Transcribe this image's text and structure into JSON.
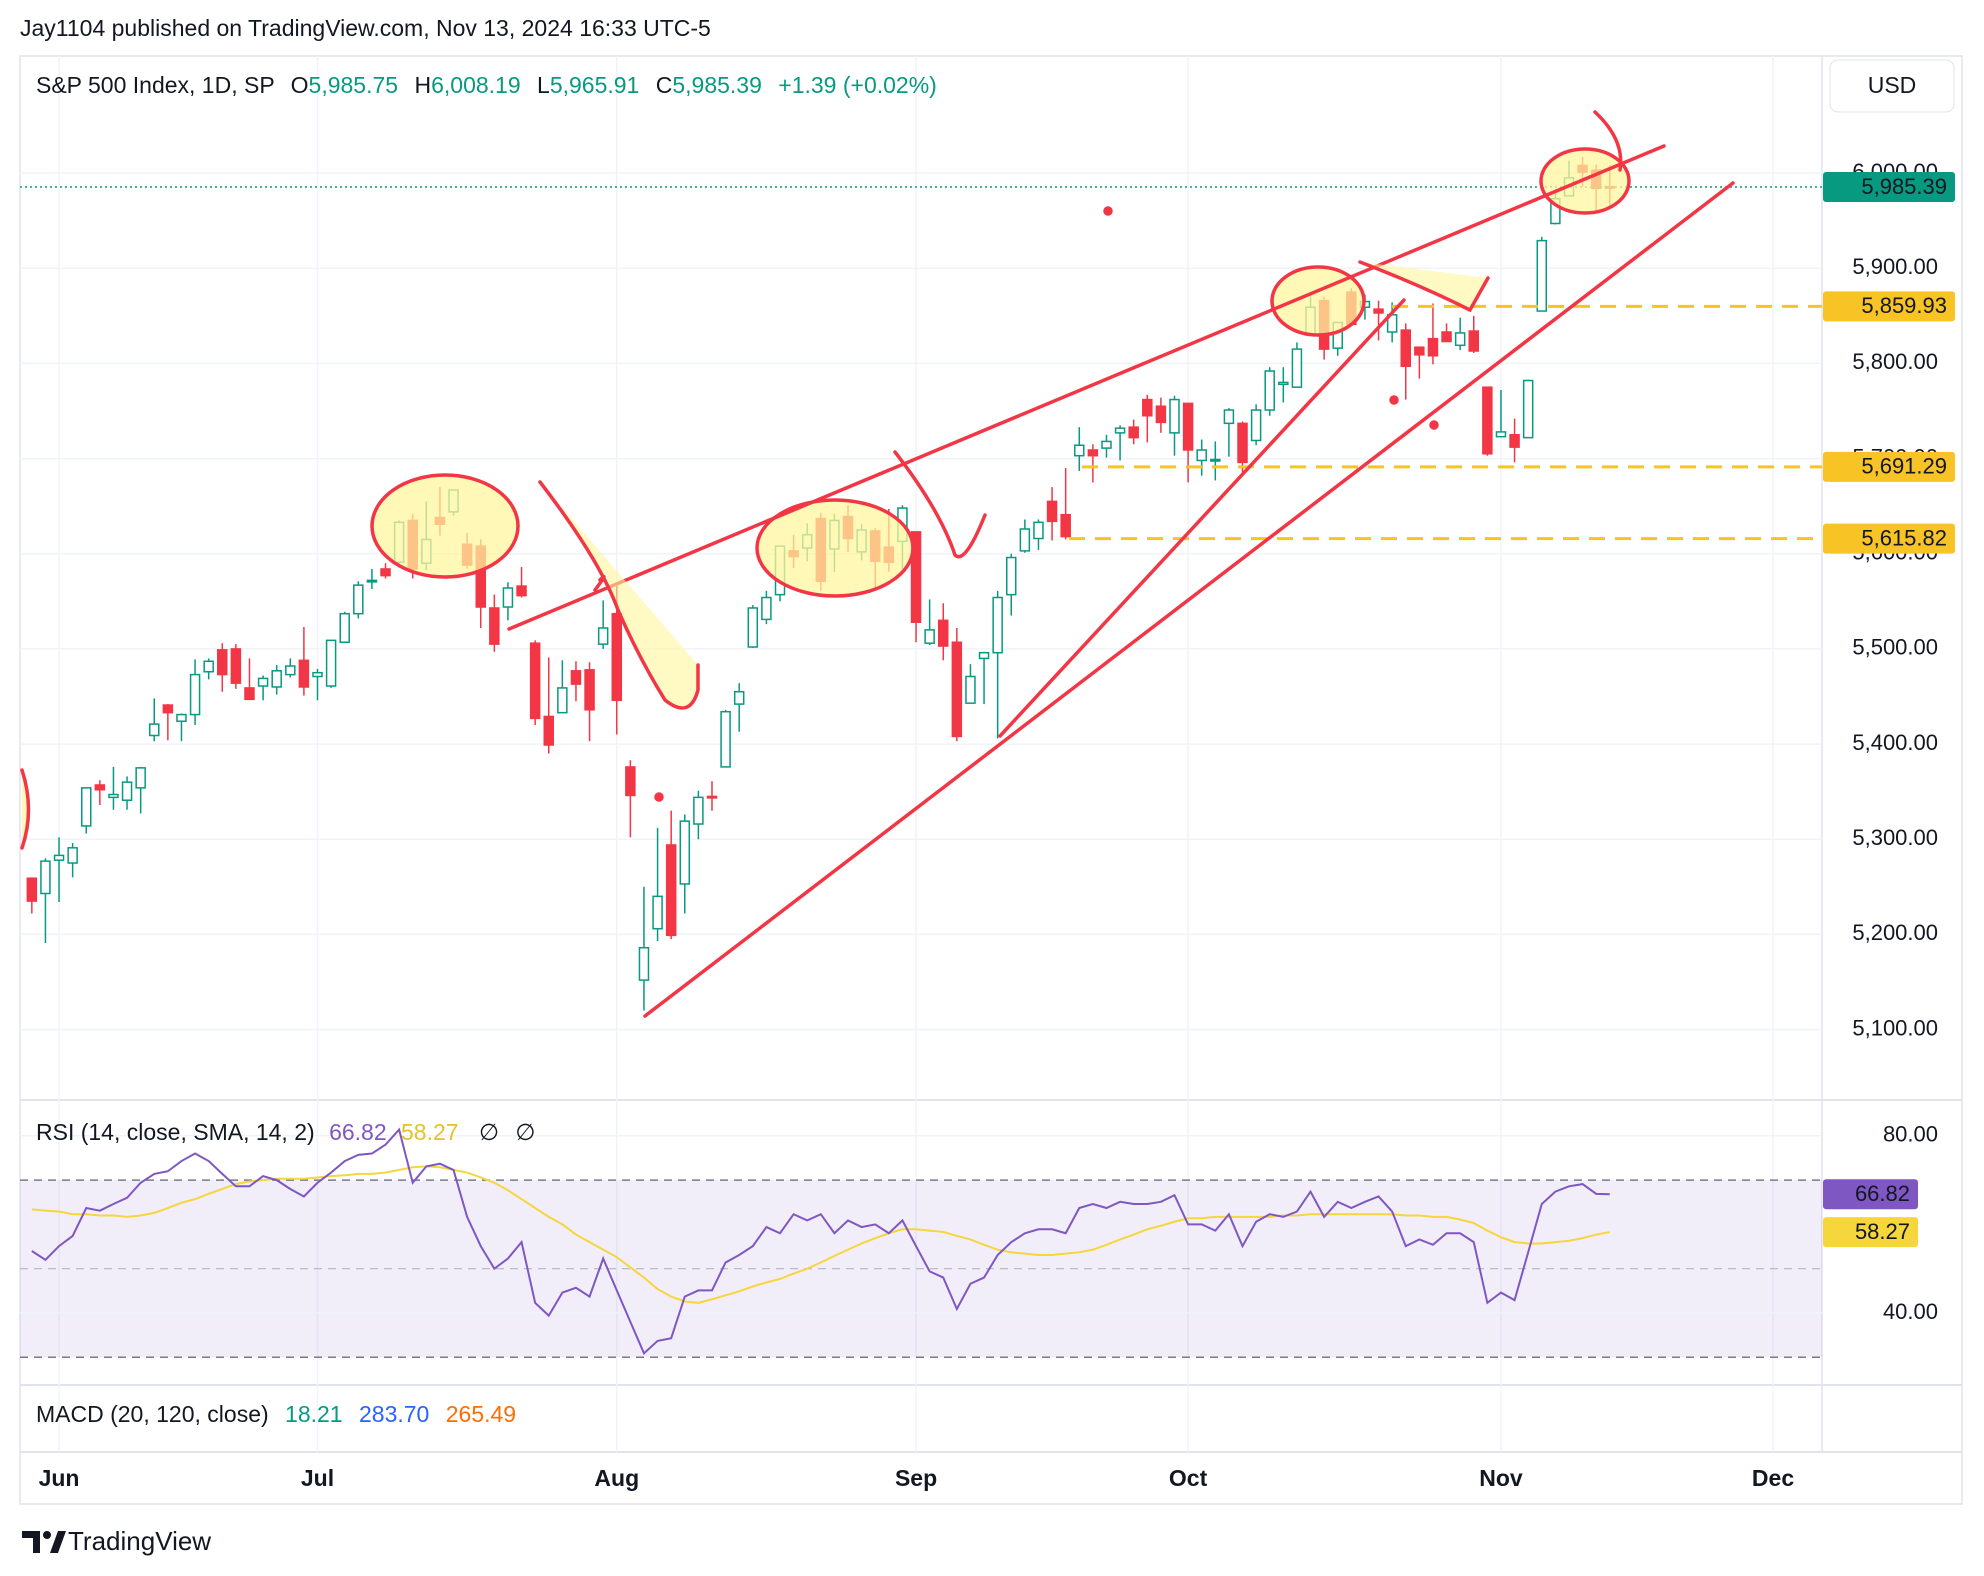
{
  "header": {
    "publisher": "Jay1104 published on TradingView.com, Nov 13, 2024 16:33 UTC-5",
    "symbol": "S&P 500 Index, 1D, SP",
    "ohlc": [
      {
        "label": "O",
        "value": "5,985.75"
      },
      {
        "label": "H",
        "value": "6,008.19"
      },
      {
        "label": "L",
        "value": "5,965.91"
      },
      {
        "label": "C",
        "value": "5,985.39"
      }
    ],
    "change": "+1.39 (+0.02%)",
    "currency": "USD"
  },
  "chart_data": [
    {
      "type": "candlestick",
      "up_color": "#089981",
      "down_color": "#f23645",
      "grid": true,
      "xlim": [
        -0.87,
        131.6
      ],
      "xticks": [
        {
          "value": 2,
          "label": "Jun"
        },
        {
          "value": 21,
          "label": "Jul"
        },
        {
          "value": 43,
          "label": "Aug"
        },
        {
          "value": 65,
          "label": "Sep"
        },
        {
          "value": 85,
          "label": "Oct"
        },
        {
          "value": 108,
          "label": "Nov"
        },
        {
          "value": 128,
          "label": "Dec"
        }
      ],
      "ylim": [
        5026,
        6123
      ],
      "yticks": [
        {
          "value": 5100,
          "label": "5,100.00"
        },
        {
          "value": 5200,
          "label": "5,200.00"
        },
        {
          "value": 5300,
          "label": "5,300.00"
        },
        {
          "value": 5400,
          "label": "5,400.00"
        },
        {
          "value": 5500,
          "label": "5,500.00"
        },
        {
          "value": 5600,
          "label": "5,600.00"
        },
        {
          "value": 5700,
          "label": "5,700.00"
        },
        {
          "value": 5800,
          "label": "5,800.00"
        },
        {
          "value": 5900,
          "label": "5,900.00"
        },
        {
          "value": 6000,
          "label": "6,000.00"
        }
      ],
      "open": [
        5259,
        5243,
        5278,
        5275,
        5314,
        5357,
        5344,
        5341,
        5354,
        5409,
        5441,
        5424,
        5431,
        5476,
        5499,
        5500,
        5459,
        5461,
        5460,
        5473,
        5488,
        5471,
        5461,
        5507,
        5537,
        5572,
        5584,
        5591,
        5635,
        5590,
        5638,
        5644,
        5610,
        5608,
        5543,
        5544,
        5566,
        5506,
        5429,
        5433,
        5477,
        5478,
        5505,
        5537,
        5376,
        5152,
        5206,
        5294,
        5253,
        5316,
        5345,
        5376,
        5442,
        5502,
        5531,
        5557,
        5603,
        5606,
        5637,
        5605,
        5639,
        5602,
        5624,
        5607,
        5613,
        5623,
        5506,
        5530,
        5507,
        5443,
        5490,
        5496,
        5557,
        5603,
        5616,
        5655,
        5641,
        5703,
        5709,
        5711,
        5727,
        5733,
        5762,
        5755,
        5727,
        5758,
        5698,
        5698,
        5737,
        5737,
        5719,
        5751,
        5778,
        5775,
        5830,
        5866,
        5816,
        5875,
        5859,
        5857,
        5833,
        5835,
        5817,
        5826,
        5833,
        5819,
        5834,
        5775,
        5723,
        5725,
        5722,
        5855,
        5947,
        5976,
        6008,
        6003,
        5985.75
      ],
      "high": [
        5260,
        5280,
        5302,
        5296,
        5354,
        5362,
        5376,
        5366,
        5376,
        5448,
        5442,
        5432,
        5489,
        5490,
        5506,
        5505,
        5490,
        5472,
        5483,
        5490,
        5523,
        5479,
        5509,
        5539,
        5571,
        5584,
        5590,
        5635,
        5642,
        5655,
        5670,
        5667,
        5622,
        5615,
        5557,
        5570,
        5586,
        5509,
        5491,
        5488,
        5487,
        5486,
        5551,
        5566,
        5383,
        5250,
        5312,
        5330,
        5326,
        5351,
        5361,
        5436,
        5464,
        5546,
        5561,
        5608,
        5620,
        5632,
        5643,
        5642,
        5651,
        5631,
        5627,
        5647,
        5651,
        5623,
        5552,
        5548,
        5522,
        5484,
        5497,
        5561,
        5600,
        5636,
        5636,
        5670,
        5690,
        5733,
        5715,
        5725,
        5735,
        5741,
        5767,
        5764,
        5766,
        5758,
        5720,
        5718,
        5753,
        5739,
        5757,
        5796,
        5796,
        5822,
        5871,
        5870,
        5843,
        5879,
        5872,
        5866,
        5864,
        5842,
        5817,
        5863,
        5842,
        5848,
        5850,
        5775,
        5772,
        5742,
        5783,
        5933,
        5983,
        6013,
        6017,
        6009,
        6008.19
      ],
      "low": [
        5222,
        5191,
        5234,
        5260,
        5306,
        5336,
        5331,
        5331,
        5327,
        5403,
        5404,
        5403,
        5420,
        5468,
        5455,
        5458,
        5447,
        5446,
        5452,
        5470,
        5451,
        5446,
        5459,
        5507,
        5532,
        5563,
        5574,
        5587,
        5574,
        5583,
        5619,
        5640,
        5584,
        5522,
        5497,
        5530,
        5554,
        5420,
        5390,
        5433,
        5445,
        5403,
        5500,
        5410,
        5302,
        5120,
        5193,
        5195,
        5222,
        5300,
        5330,
        5376,
        5413,
        5501,
        5526,
        5550,
        5585,
        5592,
        5561,
        5581,
        5602,
        5593,
        5561,
        5581,
        5584,
        5507,
        5504,
        5488,
        5403,
        5443,
        5442,
        5406,
        5535,
        5601,
        5604,
        5614,
        5615,
        5687,
        5675,
        5701,
        5698,
        5715,
        5717,
        5727,
        5703,
        5675,
        5682,
        5677,
        5702,
        5683,
        5714,
        5745,
        5759,
        5775,
        5829,
        5804,
        5808,
        5840,
        5846,
        5824,
        5822,
        5762,
        5784,
        5799,
        5823,
        5814,
        5811,
        5703,
        5723,
        5696,
        5722,
        5855,
        5946,
        5976,
        5986,
        5960,
        5965.91
      ],
      "close": [
        5235,
        5277,
        5283,
        5291,
        5354,
        5352,
        5347,
        5360,
        5375,
        5421,
        5433,
        5431,
        5473,
        5487,
        5473,
        5464,
        5447,
        5469,
        5477,
        5482,
        5460,
        5475,
        5509,
        5537,
        5567,
        5572,
        5577,
        5633,
        5584,
        5615,
        5631,
        5667,
        5588,
        5544,
        5505,
        5564,
        5556,
        5427,
        5399,
        5459,
        5463,
        5436,
        5522,
        5446,
        5346,
        5186,
        5240,
        5199,
        5319,
        5344,
        5344,
        5434,
        5455,
        5543,
        5554,
        5608,
        5597,
        5620,
        5571,
        5635,
        5616,
        5625,
        5592,
        5591,
        5648,
        5528,
        5520,
        5503,
        5408,
        5471,
        5496,
        5554,
        5596,
        5626,
        5633,
        5634,
        5618,
        5714,
        5703,
        5718,
        5732,
        5722,
        5745,
        5738,
        5762,
        5709,
        5709,
        5699,
        5751,
        5696,
        5751,
        5792,
        5780,
        5815,
        5859,
        5815,
        5843,
        5841,
        5865,
        5853,
        5851,
        5797,
        5809,
        5808,
        5823,
        5832,
        5813,
        5705,
        5728,
        5712,
        5782,
        5929,
        5973,
        5995,
        6001,
        5984,
        5985.39
      ],
      "price_tags": [
        {
          "value": 5985.39,
          "label": "5,985.39",
          "color": "#089981"
        },
        {
          "value": 5859.93,
          "label": "5,859.93",
          "color": "#f7c325"
        },
        {
          "value": 5691.29,
          "label": "5,691.29",
          "color": "#f7c325"
        },
        {
          "value": 5615.82,
          "label": "5,615.82",
          "color": "#f7c325"
        }
      ]
    },
    {
      "type": "line",
      "title": "RSI (14, close, SMA, 14, 2)",
      "flags": [
        "∅",
        "∅"
      ],
      "ylim": [
        25.1,
        85.6
      ],
      "yticks": [
        {
          "value": 80,
          "label": "80.00"
        },
        {
          "value": 40,
          "label": "40.00"
        }
      ],
      "band": [
        30,
        70
      ],
      "midline": 50,
      "series": [
        {
          "color": "#7e57c2",
          "values": [
            54,
            52,
            55.1,
            57.4,
            63.7,
            63.1,
            64.6,
            66,
            69.4,
            71.4,
            72,
            74.3,
            76,
            74.3,
            71.4,
            68.6,
            68.6,
            70.9,
            70,
            68,
            66.3,
            69.4,
            71.7,
            74.3,
            75.7,
            76,
            78,
            81.4,
            69.4,
            73.1,
            73.7,
            72.3,
            61.7,
            55.1,
            50,
            52.3,
            56,
            42.3,
            39.4,
            44.6,
            45.7,
            43.7,
            52.3,
            45.1,
            38,
            30.9,
            33.7,
            34.3,
            43.7,
            45.1,
            45.1,
            51.4,
            53.1,
            55.1,
            59.4,
            58,
            62.3,
            60.9,
            62.3,
            58,
            60.9,
            59.4,
            60,
            58,
            60.9,
            55.1,
            49.4,
            48,
            40.9,
            46.6,
            48,
            53.1,
            56,
            58,
            58.9,
            58.9,
            58,
            63.7,
            64.6,
            63.7,
            65.1,
            64.6,
            64.6,
            65.1,
            66.6,
            60,
            60,
            58.6,
            62.3,
            55.1,
            60.6,
            62.3,
            61.7,
            62.9,
            67.4,
            61.7,
            65.1,
            63.7,
            65.1,
            66.3,
            62.9,
            55.1,
            56.6,
            55.4,
            58,
            58,
            56,
            42.3,
            44.6,
            42.9,
            53.7,
            64.6,
            67.4,
            68.6,
            69.1,
            66.9,
            66.82
          ]
        },
        {
          "color": "#f5d63d",
          "values": [
            63.4,
            63.1,
            62.9,
            62.3,
            62.3,
            62,
            62,
            61.7,
            62,
            62.6,
            63.7,
            64.9,
            65.7,
            66.9,
            68,
            69.1,
            69.7,
            70,
            70.3,
            70.3,
            70.3,
            70.6,
            70.9,
            71.1,
            71.4,
            71.4,
            71.7,
            72.3,
            72.9,
            73.1,
            72.9,
            72.3,
            71.7,
            70.6,
            69.4,
            67.7,
            65.7,
            63.7,
            61.7,
            60,
            57.7,
            56,
            54.3,
            52.6,
            50.3,
            48,
            45.4,
            43.7,
            42.6,
            42.3,
            43.1,
            44,
            44.9,
            46,
            46.9,
            47.7,
            48.9,
            50,
            51.4,
            52.9,
            54.3,
            55.7,
            56.9,
            58,
            58.9,
            58.9,
            58.6,
            58.3,
            57.4,
            56.6,
            55.4,
            54.3,
            53.7,
            53.4,
            53.1,
            53.1,
            53.4,
            53.7,
            54.3,
            55.4,
            56.6,
            57.7,
            58.9,
            59.7,
            60.6,
            61.4,
            61.4,
            61.7,
            61.7,
            61.7,
            61.7,
            61.7,
            62,
            62,
            62.3,
            62.3,
            62.3,
            62.3,
            62.3,
            62.3,
            62.3,
            62,
            62,
            61.7,
            61.7,
            61.1,
            60.3,
            58.6,
            57.1,
            56,
            55.7,
            55.7,
            56,
            56.3,
            56.9,
            57.7,
            58.27
          ]
        }
      ]
    }
  ],
  "macd": {
    "title": "MACD (20, 120, close)",
    "values": [
      {
        "text": "18.21",
        "color": "#089981"
      },
      {
        "text": "283.70",
        "color": "#2962ff"
      },
      {
        "text": "265.49",
        "color": "#ff6d00"
      }
    ]
  },
  "footer": {
    "brand": "TradingView"
  }
}
